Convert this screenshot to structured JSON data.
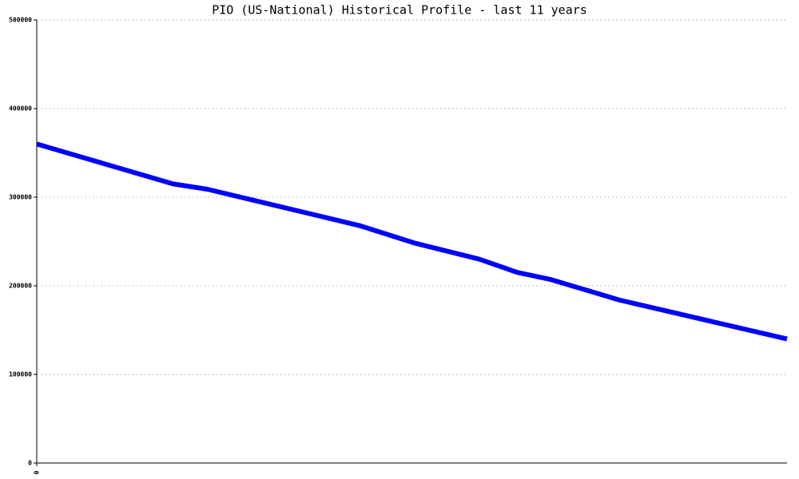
{
  "chart_data": {
    "type": "line",
    "title": "PIO (US-National) Historical Profile - last 11 years",
    "x": [
      0,
      2.0,
      2.5,
      4.73,
      5.55,
      6.49,
      7.05,
      7.54,
      8.54,
      11
    ],
    "series": [
      {
        "color": "#0000ff",
        "values": [
          360000,
          315000,
          309000,
          268000,
          248000,
          230000,
          215000,
          207000,
          184000,
          140000
        ]
      }
    ],
    "xlim": [
      0,
      11
    ],
    "xticks": [
      0
    ],
    "ylim": [
      0,
      500000
    ],
    "yticks": [
      0,
      100000,
      200000,
      300000,
      400000,
      500000
    ],
    "grid": true
  }
}
